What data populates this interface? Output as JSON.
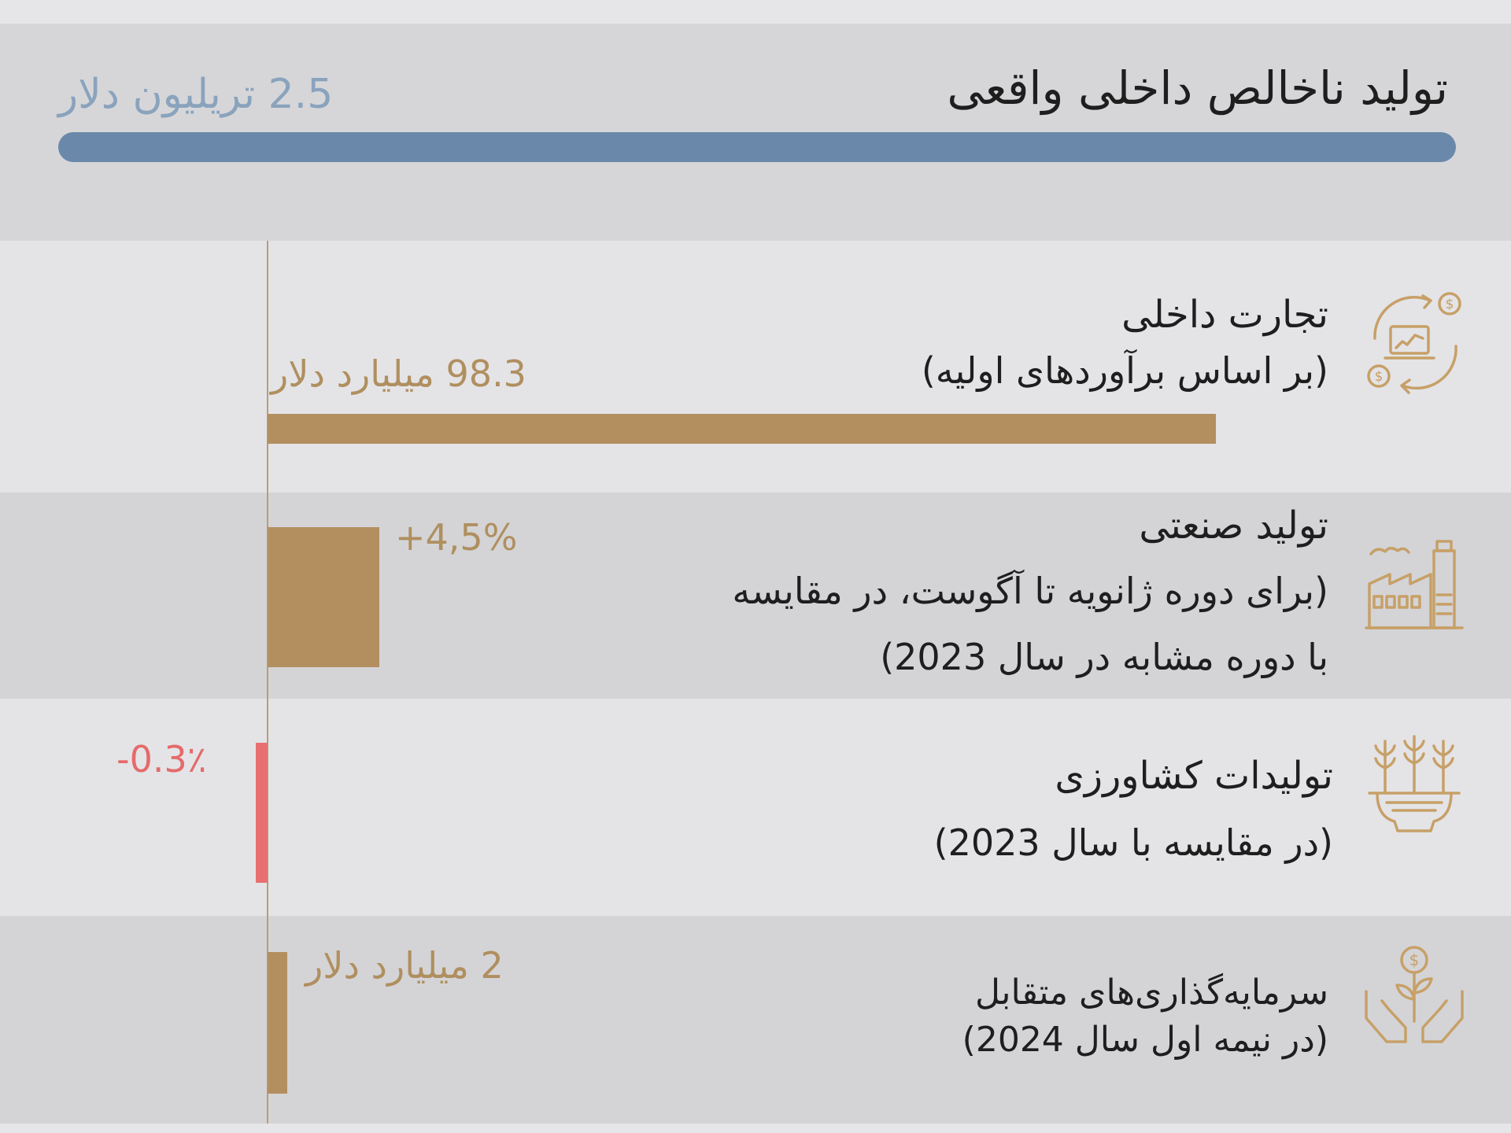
{
  "header": {
    "title": "تولید ناخالص داخلی واقعی",
    "value": "2.5 تریلیون دلار"
  },
  "rows": [
    {
      "title": "تجارت داخلی",
      "subtitle_lines": [
        "(بر اساس برآوردهای اولیه)"
      ],
      "value_label": "98.3 میلیارد دلار",
      "icon": "trade-exchange-icon"
    },
    {
      "title": "تولید صنعتی",
      "subtitle_lines": [
        "(برای دوره ژانویه تا آگوست، در مقایسه",
        "با دوره مشابه در سال 2023)"
      ],
      "value_label": "+4,5%",
      "icon": "factory-icon"
    },
    {
      "title": "تولیدات کشاورزی",
      "subtitle_lines": [
        "(در مقایسه با سال 2023)"
      ],
      "value_label": "-0.3٪",
      "icon": "agriculture-icon"
    },
    {
      "title": "سرمایه‌گذاری‌های متقابل",
      "subtitle_lines": [
        "(در نیمه اول سال 2024)"
      ],
      "value_label": "2 میلیارد دلار",
      "icon": "investment-hands-icon"
    }
  ],
  "colors": {
    "bar_positive": "#b38f5f",
    "bar_negative": "#e87070",
    "header_bar": "#6a89aa",
    "header_value": "#8aa3bd"
  },
  "chart_data": {
    "type": "bar",
    "orientation": "horizontal",
    "categories": [
      "تولید ناخالص داخلی واقعی",
      "تجارت داخلی",
      "تولید صنعتی",
      "تولیدات کشاورزی",
      "سرمایه‌گذاری‌های متقابل"
    ],
    "values": [
      2.5,
      98.3,
      4.5,
      -0.3,
      2
    ],
    "units": [
      "تریلیون دلار",
      "میلیارد دلار",
      "%",
      "%",
      "میلیارد دلار"
    ],
    "value_labels": [
      "2.5 تریلیون دلار",
      "98.3 میلیارد دلار",
      "+4,5%",
      "-0.3٪",
      "2 میلیارد دلار"
    ],
    "title": "",
    "xlabel": "",
    "ylabel": "",
    "grid": false,
    "legend": "none"
  }
}
